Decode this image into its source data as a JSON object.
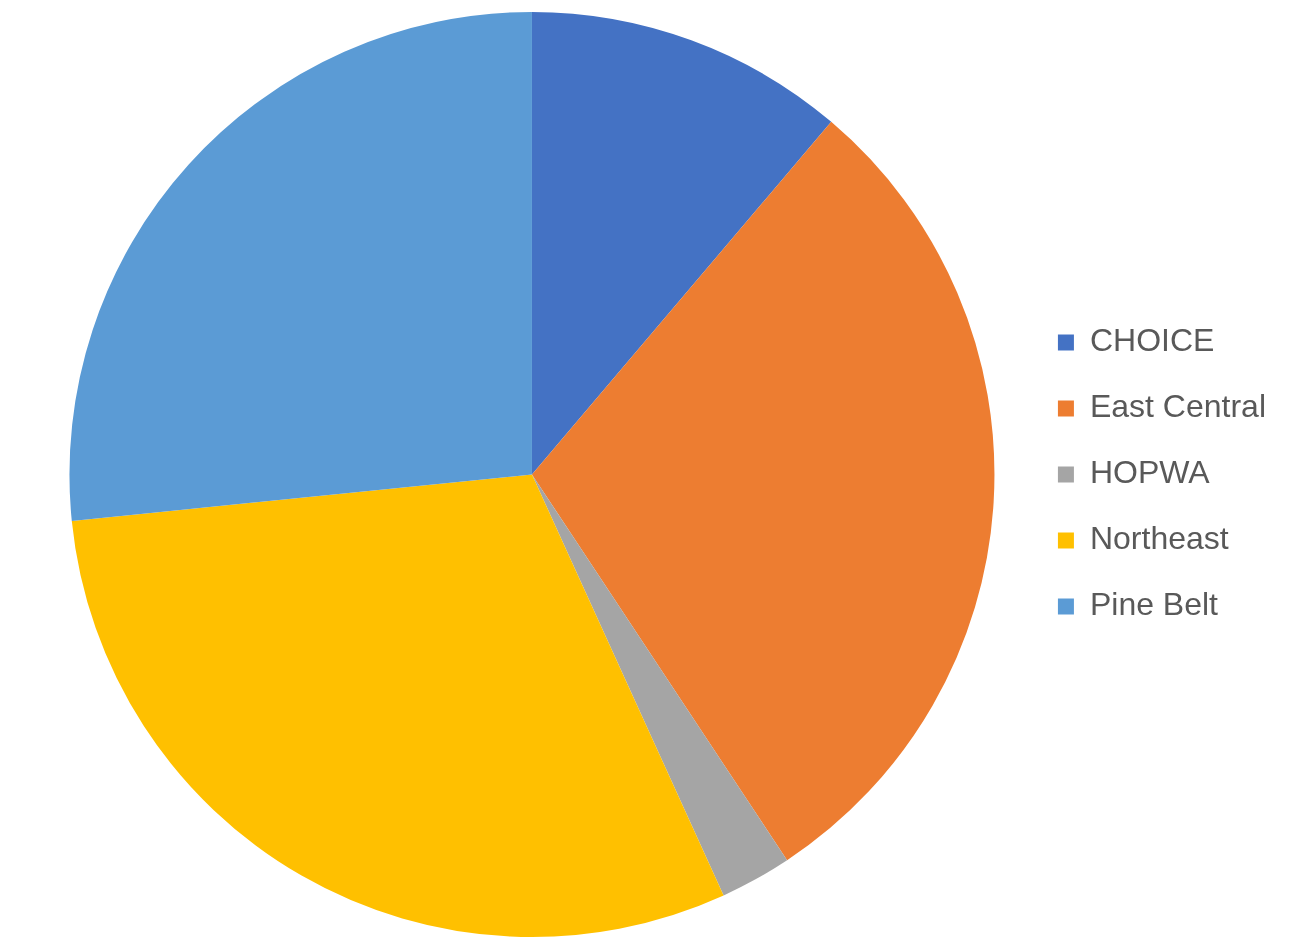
{
  "chart_data": {
    "type": "pie",
    "categories": [
      "CHOICE",
      "East Central",
      "HOPWA",
      "Northeast",
      "Pine Belt"
    ],
    "values": [
      11.2,
      29.5,
      2.5,
      30.2,
      26.6
    ],
    "colors": [
      "#4472c4",
      "#ed7d31",
      "#a5a5a5",
      "#ffc000",
      "#5b9bd5"
    ],
    "legend": "right"
  }
}
